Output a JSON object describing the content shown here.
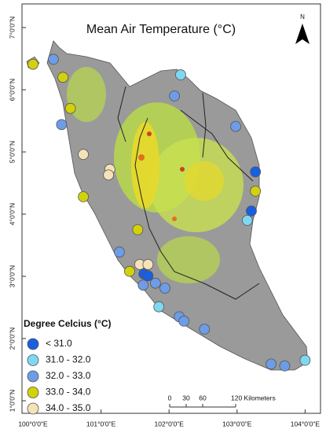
{
  "title": "Mean Air Temperature (°C)",
  "north_label": "N",
  "lat_ticks": [
    {
      "value": 7,
      "label": "7°0'0\"N"
    },
    {
      "value": 6,
      "label": "6°0'0\"N"
    },
    {
      "value": 5,
      "label": "5°0'0\"N"
    },
    {
      "value": 4,
      "label": "4°0'0\"N"
    },
    {
      "value": 3,
      "label": "3°0'0\"N"
    },
    {
      "value": 2,
      "label": "2°0'0\"N"
    },
    {
      "value": 1,
      "label": "1°0'0\"N"
    }
  ],
  "lon_ticks": [
    {
      "value": 100,
      "label": "100°0'0\"E"
    },
    {
      "value": 101,
      "label": "101°0'0\"E"
    },
    {
      "value": 102,
      "label": "102°0'0\"E"
    },
    {
      "value": 103,
      "label": "103°0'0\"E"
    },
    {
      "value": 104,
      "label": "104°0'0\"E"
    }
  ],
  "legend": {
    "title": "Degree Celcius (°C)",
    "items": [
      {
        "label": "< 31.0",
        "color": "#1a5fe0"
      },
      {
        "label": "31.0 - 32.0",
        "color": "#7fd8f2"
      },
      {
        "label": "32.0 - 33.0",
        "color": "#6e9ce6"
      },
      {
        "label": "33.0 - 34.0",
        "color": "#d2d20a"
      },
      {
        "label": "34.0 - 35.0",
        "color": "#f6e2b8"
      }
    ]
  },
  "scale_bar": [
    0,
    30,
    60,
    {
      "value": 120,
      "label": "120 Kilometers"
    }
  ],
  "stations": [
    {
      "lon": 100.0,
      "lat": 6.41,
      "class": 3
    },
    {
      "lon": 100.3,
      "lat": 6.49,
      "class": 2
    },
    {
      "lon": 100.44,
      "lat": 6.2,
      "class": 3
    },
    {
      "lon": 100.55,
      "lat": 5.7,
      "class": 3
    },
    {
      "lon": 100.42,
      "lat": 5.44,
      "class": 2
    },
    {
      "lon": 100.74,
      "lat": 4.96,
      "class": 4
    },
    {
      "lon": 101.13,
      "lat": 4.72,
      "class": 4
    },
    {
      "lon": 101.11,
      "lat": 4.63,
      "class": 4
    },
    {
      "lon": 100.74,
      "lat": 4.28,
      "class": 3
    },
    {
      "lon": 101.54,
      "lat": 3.75,
      "class": 3
    },
    {
      "lon": 101.27,
      "lat": 3.39,
      "class": 2
    },
    {
      "lon": 101.57,
      "lat": 3.19,
      "class": 4
    },
    {
      "lon": 101.69,
      "lat": 3.19,
      "class": 4
    },
    {
      "lon": 101.42,
      "lat": 3.08,
      "class": 3
    },
    {
      "lon": 101.63,
      "lat": 3.04,
      "class": 0
    },
    {
      "lon": 101.69,
      "lat": 3.01,
      "class": 0
    },
    {
      "lon": 101.62,
      "lat": 2.86,
      "class": 2
    },
    {
      "lon": 101.8,
      "lat": 2.89,
      "class": 2
    },
    {
      "lon": 101.94,
      "lat": 2.81,
      "class": 2
    },
    {
      "lon": 101.85,
      "lat": 2.51,
      "class": 1
    },
    {
      "lon": 102.15,
      "lat": 2.35,
      "class": 2
    },
    {
      "lon": 102.22,
      "lat": 2.28,
      "class": 2
    },
    {
      "lon": 102.52,
      "lat": 2.15,
      "class": 2
    },
    {
      "lon": 102.17,
      "lat": 6.24,
      "class": 1
    },
    {
      "lon": 102.08,
      "lat": 5.9,
      "class": 2
    },
    {
      "lon": 102.98,
      "lat": 5.41,
      "class": 2
    },
    {
      "lon": 103.27,
      "lat": 4.68,
      "class": 0
    },
    {
      "lon": 103.27,
      "lat": 4.37,
      "class": 3
    },
    {
      "lon": 103.21,
      "lat": 4.05,
      "class": 0
    },
    {
      "lon": 103.15,
      "lat": 3.9,
      "class": 1
    },
    {
      "lon": 103.5,
      "lat": 1.59,
      "class": 2
    },
    {
      "lon": 103.7,
      "lat": 1.56,
      "class": 2
    },
    {
      "lon": 104.0,
      "lat": 1.65,
      "class": 1
    }
  ]
}
